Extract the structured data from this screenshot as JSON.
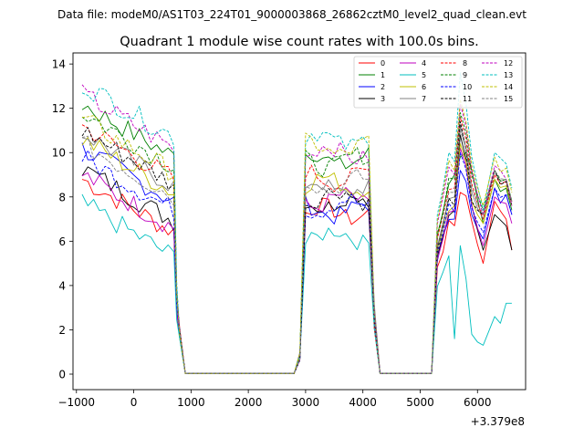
{
  "figure": {
    "suptitle": "Data file: modeM0/AS1T03_224T01_9000003868_26862cztM0_level2_quad_clean.evt",
    "title": "Quadrant 1 module wise count rates with 100.0s bins."
  },
  "chart_data": {
    "type": "line",
    "title": "Quadrant 1 module wise count rates with 100.0s bins.",
    "xlabel": "",
    "ylabel": "",
    "x_offset_label": "+3.379e8",
    "xlim": [
      -1060,
      6840
    ],
    "ylim": [
      -0.7,
      14.5
    ],
    "xticks": [
      -1000,
      0,
      1000,
      2000,
      3000,
      4000,
      5000,
      6000
    ],
    "xtick_labels": [
      "−1000",
      "0",
      "1000",
      "2000",
      "3000",
      "4000",
      "5000",
      "6000"
    ],
    "yticks": [
      0,
      2,
      4,
      6,
      8,
      10,
      12,
      14
    ],
    "ytick_labels": [
      "0",
      "2",
      "4",
      "6",
      "8",
      "10",
      "12",
      "14"
    ],
    "grid": false,
    "legend_placement": "top-right",
    "series": [
      {
        "name": "0",
        "color": "#ff0000",
        "dash": "solid",
        "base": 8.8,
        "s2": 7.3,
        "s3": 6.7,
        "g3": [
          6.7,
          8.2,
          5.0,
          7.8,
          5.6
        ]
      },
      {
        "name": "1",
        "color": "#008000",
        "dash": "solid",
        "base": 12.2,
        "s2": 9.7,
        "s3": 8.7,
        "g3": [
          9.0,
          9.8,
          6.8,
          8.8,
          7.4
        ]
      },
      {
        "name": "2",
        "color": "#0000ff",
        "dash": "solid",
        "base": 10.2,
        "s2": 7.4,
        "s3": 7.1,
        "g3": [
          7.0,
          9.2,
          6.1,
          8.4,
          7.2
        ]
      },
      {
        "name": "3",
        "color": "#000000",
        "dash": "solid",
        "base": 9.3,
        "s2": 7.8,
        "s3": 7.4,
        "g3": [
          7.4,
          10.8,
          5.6,
          7.2,
          5.6
        ]
      },
      {
        "name": "4",
        "color": "#bf00bf",
        "dash": "solid",
        "base": 9.0,
        "s2": 7.8,
        "s3": 7.2,
        "g3": [
          7.4,
          10.2,
          5.8,
          8.0,
          6.8
        ]
      },
      {
        "name": "5",
        "color": "#00bfbf",
        "dash": "solid",
        "base": 7.7,
        "s2": 6.2,
        "s3": 5.5,
        "g3": [
          1.6,
          5.8,
          1.3,
          2.6,
          3.2
        ]
      },
      {
        "name": "6",
        "color": "#bfbf00",
        "dash": "solid",
        "base": 10.6,
        "s2": 8.6,
        "s3": 7.6,
        "g3": [
          7.6,
          10.4,
          6.8,
          8.8,
          7.6
        ]
      },
      {
        "name": "7",
        "color": "#808080",
        "dash": "solid",
        "base": 10.9,
        "s2": 8.4,
        "s3": 8.0,
        "g3": [
          8.0,
          11.2,
          7.0,
          9.2,
          7.8
        ]
      },
      {
        "name": "8",
        "color": "#ff0000",
        "dash": "dashed",
        "base": 11.2,
        "s2": 8.9,
        "s3": 8.5,
        "g3": [
          8.4,
          11.6,
          7.0,
          9.0,
          7.8
        ]
      },
      {
        "name": "9",
        "color": "#008000",
        "dash": "dashed",
        "base": 11.8,
        "s2": 9.6,
        "s3": 8.8,
        "g3": [
          8.8,
          11.8,
          7.4,
          9.2,
          7.8
        ]
      },
      {
        "name": "10",
        "color": "#0000ff",
        "dash": "dashed",
        "base": 9.8,
        "s2": 7.6,
        "s3": 7.6,
        "g3": [
          7.3,
          10.0,
          6.4,
          8.4,
          7.2
        ]
      },
      {
        "name": "11",
        "color": "#000000",
        "dash": "dashed",
        "base": 11.0,
        "s2": 8.0,
        "s3": 7.8,
        "g3": [
          7.6,
          11.4,
          7.2,
          9.2,
          7.6
        ]
      },
      {
        "name": "12",
        "color": "#bf00bf",
        "dash": "dashed",
        "base": 12.6,
        "s2": 10.0,
        "s3": 9.4,
        "g3": [
          9.0,
          12.2,
          7.2,
          9.4,
          7.6
        ]
      },
      {
        "name": "13",
        "color": "#00bfbf",
        "dash": "dashed",
        "base": 13.1,
        "s2": 10.6,
        "s3": 10.0,
        "g3": [
          9.6,
          13.6,
          7.4,
          10.0,
          8.4
        ]
      },
      {
        "name": "14",
        "color": "#bfbf00",
        "dash": "dashed",
        "base": 11.5,
        "s2": 10.2,
        "s3": 9.6,
        "g3": [
          9.2,
          12.4,
          7.6,
          9.8,
          8.2
        ]
      },
      {
        "name": "15",
        "color": "#808080",
        "dash": "dashed",
        "base": 10.4,
        "s2": 8.6,
        "s3": 8.0,
        "g3": [
          8.2,
          11.0,
          7.2,
          9.2,
          7.8
        ]
      }
    ]
  }
}
